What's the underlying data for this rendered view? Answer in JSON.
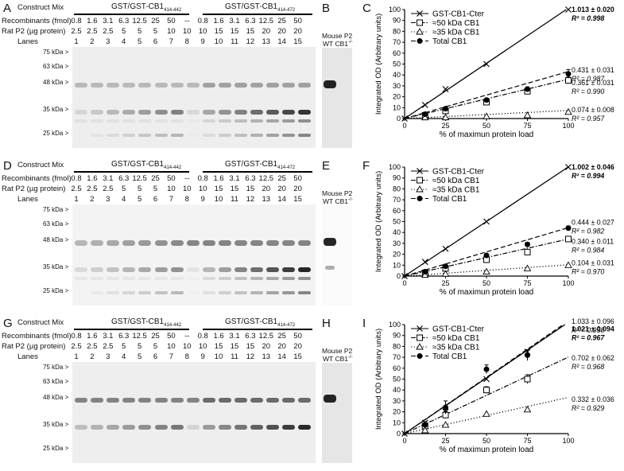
{
  "rows": [
    {
      "panel_gel": "A",
      "panel_mouse": "B",
      "panel_chart": "C",
      "construct_mix_label": "Construct Mix",
      "group_left": "GST/GST-CB1",
      "group_left_sub": "414-442",
      "group_right": "GST/GST-CB1",
      "group_right_sub": "414-472",
      "recombinants_label": "Recombinants (fmol)",
      "recombinants_values": [
        "0.8",
        "1.6",
        "3.1",
        "6.3",
        "12.5",
        "25",
        "50",
        "--",
        "0.8",
        "1.6",
        "3.1",
        "6.3",
        "12.5",
        "25",
        "50"
      ],
      "ratp2_label": "Rat P2 (µg protein)",
      "ratp2_values": [
        "2.5",
        "2.5",
        "2.5",
        "5",
        "5",
        "5",
        "10",
        "10",
        "10",
        "15",
        "15",
        "15",
        "20",
        "20",
        "20"
      ],
      "lanes_label": "Lanes",
      "lanes_values": [
        "1",
        "2",
        "3",
        "4",
        "5",
        "6",
        "7",
        "8",
        "9",
        "10",
        "11",
        "12",
        "13",
        "14",
        "15"
      ],
      "kda_markers": [
        "75 kDa >",
        "63 kDa >",
        "48 kDa >",
        "35 kDa >",
        "25 kDa >"
      ],
      "mouse_title": "Mouse P2",
      "mouse_wt": "WT",
      "mouse_ko": "CB1",
      "mouse_ko_sup": "-/-"
    },
    {
      "panel_gel": "D",
      "panel_mouse": "E",
      "panel_chart": "F",
      "construct_mix_label": "Construct Mix",
      "group_left": "GST/GST-CB1",
      "group_left_sub": "414-442",
      "group_right": "GST/GST-CB1",
      "group_right_sub": "414-472",
      "recombinants_label": "Recombinants (fmol)",
      "recombinants_values": [
        "0.8",
        "1.6",
        "3.1",
        "6.3",
        "12.5",
        "25",
        "50",
        "--",
        "0.8",
        "1.6",
        "3.1",
        "6.3",
        "12.5",
        "25",
        "50"
      ],
      "ratp2_label": "Rat P2 (µg protein)",
      "ratp2_values": [
        "2.5",
        "2.5",
        "2.5",
        "5",
        "5",
        "5",
        "10",
        "10",
        "10",
        "15",
        "15",
        "15",
        "20",
        "20",
        "20"
      ],
      "lanes_label": "Lanes",
      "lanes_values": [
        "1",
        "2",
        "3",
        "4",
        "5",
        "6",
        "7",
        "8",
        "9",
        "10",
        "11",
        "12",
        "13",
        "14",
        "15"
      ],
      "kda_markers": [
        "75 kDa >",
        "63 kDa >",
        "48 kDa >",
        "35 kDa >",
        "25 kDa >"
      ],
      "mouse_title": "Mouse P2",
      "mouse_wt": "WT",
      "mouse_ko": "CB1",
      "mouse_ko_sup": "-/-"
    },
    {
      "panel_gel": "G",
      "panel_mouse": "H",
      "panel_chart": "I",
      "construct_mix_label": "Construct Mix",
      "group_left": "GST/GST-CB1",
      "group_left_sub": "414-442",
      "group_right": "GST/GST-CB1",
      "group_right_sub": "414-472",
      "recombinants_label": "Recombinants (fmol)",
      "recombinants_values": [
        "0.8",
        "1.6",
        "3.1",
        "6.3",
        "12.5",
        "25",
        "50",
        "--",
        "0.8",
        "1.6",
        "3.1",
        "6.3",
        "12.5",
        "25",
        "50"
      ],
      "ratp2_label": "Rat P2 (µg protein)",
      "ratp2_values": [
        "2.5",
        "2.5",
        "2.5",
        "5",
        "5",
        "5",
        "10",
        "10",
        "10",
        "15",
        "15",
        "15",
        "20",
        "20",
        "20"
      ],
      "lanes_label": "Lanes",
      "lanes_values": [
        "1",
        "2",
        "3",
        "4",
        "5",
        "6",
        "7",
        "8",
        "9",
        "10",
        "11",
        "12",
        "13",
        "14",
        "15"
      ],
      "kda_markers": [
        "75 kDa >",
        "63 kDa >",
        "48 kDa >",
        "35 kDa >",
        "25 kDa >"
      ],
      "mouse_title": "Mouse P2",
      "mouse_wt": "WT",
      "mouse_ko": "CB1",
      "mouse_ko_sup": "-/-"
    }
  ],
  "colors": {
    "line": "#000000",
    "gel_bg": "#f1f1f1"
  },
  "chart_data": [
    {
      "type": "scatter",
      "ylabel": "Integrated OD (Arbitrary units)",
      "xlabel": "% of maximun protein load",
      "xlim": [
        0,
        100
      ],
      "ylim": [
        0,
        100
      ],
      "xticks": [
        "0",
        "25",
        "50",
        "75",
        "100"
      ],
      "yticks": [
        "0",
        "10",
        "20",
        "30",
        "40",
        "50",
        "60",
        "70",
        "80",
        "90",
        "100"
      ],
      "legend_position": "top-left",
      "series": [
        {
          "name": "GST-CB1-Cter",
          "marker": "x",
          "line": "solid",
          "x": [
            0,
            12.5,
            25,
            50,
            100
          ],
          "y": [
            0,
            12.5,
            27,
            50,
            100
          ],
          "fit": [
            0,
            1.013
          ],
          "stats": [
            "1.013 ± 0.020",
            "R² = 0.998"
          ],
          "bold": true
        },
        {
          "name": "≈50 kDa CB1",
          "marker": "square",
          "line": "dashdot",
          "x": [
            12.5,
            25,
            50,
            75,
            100
          ],
          "y": [
            3,
            7,
            15,
            25,
            35
          ],
          "err": [
            1,
            1,
            1,
            2,
            3
          ],
          "fit": [
            0,
            0.361
          ],
          "stats": [
            "0.361 ± 0.031",
            "R² = 0.990"
          ],
          "bold": false
        },
        {
          "name": "≈35 kDa CB1",
          "marker": "triangle",
          "line": "dotted",
          "x": [
            12.5,
            25,
            50,
            75,
            100
          ],
          "y": [
            1,
            1,
            2,
            3,
            6
          ],
          "fit": [
            0,
            0.074
          ],
          "stats": [
            "0.074 ± 0.008",
            "R² = 0.957"
          ],
          "bold": false
        },
        {
          "name": "Total CB1",
          "marker": "circle",
          "line": "dashed",
          "x": [
            12.5,
            25,
            50,
            75,
            100
          ],
          "y": [
            4,
            9,
            17,
            27,
            41
          ],
          "err": [
            1,
            1,
            1,
            2,
            4
          ],
          "fit": [
            0,
            0.431
          ],
          "stats": [
            "0.431 ± 0.031",
            "R² = 0.987"
          ],
          "bold": false
        }
      ]
    },
    {
      "type": "scatter",
      "ylabel": "Integrated OD (Arbitrary units)",
      "xlabel": "% of maximun protein load",
      "xlim": [
        0,
        100
      ],
      "ylim": [
        0,
        100
      ],
      "xticks": [
        "0",
        "25",
        "50",
        "75",
        "100"
      ],
      "yticks": [
        "0",
        "10",
        "20",
        "30",
        "40",
        "50",
        "60",
        "70",
        "80",
        "90",
        "100"
      ],
      "legend_position": "top-left",
      "series": [
        {
          "name": "GST-CB1-Cter",
          "marker": "x",
          "line": "solid",
          "x": [
            0,
            12.5,
            25,
            50,
            100
          ],
          "y": [
            0,
            13,
            25,
            50,
            100
          ],
          "fit": [
            0,
            1.002
          ],
          "stats": [
            "1.002 ± 0.046",
            "R² = 0.994"
          ],
          "bold": true
        },
        {
          "name": "≈50 kDa CB1",
          "marker": "square",
          "line": "dashdot",
          "x": [
            12.5,
            25,
            50,
            75,
            100
          ],
          "y": [
            3,
            7,
            15,
            22,
            34
          ],
          "err": [
            1,
            1,
            1,
            2,
            2
          ],
          "fit": [
            0,
            0.34
          ],
          "stats": [
            "0.340 ± 0.011",
            "R² = 0.984"
          ],
          "bold": false
        },
        {
          "name": "≈35 kDa CB1",
          "marker": "triangle",
          "line": "dotted",
          "x": [
            12.5,
            25,
            50,
            75,
            100
          ],
          "y": [
            1,
            2,
            4,
            7,
            10
          ],
          "fit": [
            0,
            0.104
          ],
          "stats": [
            "0.104 ± 0.031",
            "R² = 0.970"
          ],
          "bold": false
        },
        {
          "name": "Total CB1",
          "marker": "circle",
          "line": "dashed",
          "x": [
            12.5,
            25,
            50,
            75,
            100
          ],
          "y": [
            4,
            9,
            19,
            29,
            44
          ],
          "err": [
            1,
            1,
            1,
            2,
            2
          ],
          "fit": [
            0,
            0.444
          ],
          "stats": [
            "0.444 ± 0.027",
            "R² = 0.982"
          ],
          "bold": false
        }
      ]
    },
    {
      "type": "scatter",
      "ylabel": "Integrated OD (Arbitrary units)",
      "xlabel": "% of maximun protein load",
      "xlim": [
        0,
        100
      ],
      "ylim": [
        0,
        100
      ],
      "xticks": [
        "0",
        "25",
        "50",
        "75",
        "100"
      ],
      "yticks": [
        "0",
        "10",
        "20",
        "30",
        "40",
        "50",
        "60",
        "70",
        "80",
        "90",
        "100"
      ],
      "legend_position": "top-left",
      "series": [
        {
          "name": "GST-CB1-Cter",
          "marker": "x",
          "line": "solid",
          "x": [
            0,
            12.5,
            25,
            50,
            75
          ],
          "y": [
            0,
            10,
            20,
            50,
            75
          ],
          "fit": [
            0,
            1.021
          ],
          "stats": [
            "1.021 ± 0.094",
            "R² = 0.967"
          ],
          "bold": true
        },
        {
          "name": "≈50 kDa CB1",
          "marker": "square",
          "line": "dashdot",
          "x": [
            12.5,
            25,
            50,
            75
          ],
          "y": [
            7,
            17,
            40,
            50
          ],
          "err": [
            2,
            3,
            3,
            4
          ],
          "fit": [
            0,
            0.702
          ],
          "stats": [
            "0.702 ± 0.062",
            "R² = 0.968"
          ],
          "bold": false
        },
        {
          "name": "≈35 kDa CB1",
          "marker": "triangle",
          "line": "dotted",
          "x": [
            12.5,
            25,
            50,
            75
          ],
          "y": [
            3,
            8,
            18,
            22
          ],
          "fit": [
            0,
            0.332
          ],
          "stats": [
            "0.332 ± 0.036",
            "R² = 0.929"
          ],
          "bold": false
        },
        {
          "name": "Total CB1",
          "marker": "circle",
          "line": "dashed",
          "x": [
            12.5,
            25,
            50,
            75
          ],
          "y": [
            8,
            24,
            59,
            72
          ],
          "err": [
            3,
            6,
            4,
            5
          ],
          "fit": [
            0,
            1.033
          ],
          "stats": [
            "1.033 ± 0.096",
            "R² = 0.958"
          ],
          "bold": false
        }
      ]
    }
  ]
}
